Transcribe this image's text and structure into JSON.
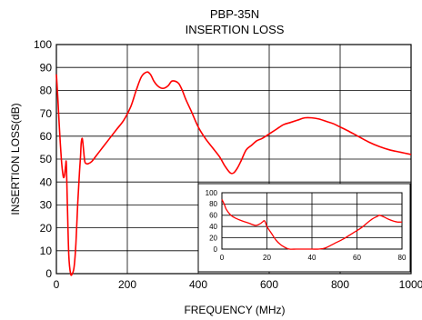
{
  "chart_data": [
    {
      "type": "line",
      "title": "PBP-35N",
      "subtitle": "INSERTION LOSS",
      "xlabel": "FREQUENCY (MHz)",
      "ylabel": "INSERTION LOSS(dB)",
      "xlim": [
        0,
        1000
      ],
      "ylim": [
        0,
        100
      ],
      "xticks": [
        0,
        200,
        400,
        600,
        800,
        1000
      ],
      "yticks": [
        0,
        10,
        20,
        30,
        40,
        50,
        60,
        70,
        80,
        90,
        100
      ],
      "grid": true,
      "series": [
        {
          "color": "#ff0000",
          "x": [
            0,
            2,
            5,
            8,
            11,
            14,
            17,
            20,
            23,
            26,
            28,
            31,
            35,
            40,
            45,
            50,
            55,
            60,
            65,
            68,
            70,
            73,
            76,
            80,
            85,
            90,
            100,
            110,
            130,
            150,
            170,
            190,
            210,
            225,
            240,
            255,
            265,
            275,
            285,
            295,
            305,
            315,
            325,
            335,
            345,
            355,
            365,
            380,
            400,
            420,
            440,
            460,
            475,
            490,
            500,
            510,
            520,
            535,
            550,
            565,
            580,
            600,
            620,
            640,
            660,
            680,
            700,
            720,
            740,
            760,
            780,
            800,
            820,
            850,
            880,
            910,
            940,
            970,
            1000
          ],
          "y": [
            87,
            82,
            74,
            65,
            57,
            50,
            45,
            42,
            43,
            47,
            48,
            30,
            8,
            0,
            0,
            3,
            13,
            30,
            44,
            51,
            57,
            59,
            55,
            49,
            48,
            48,
            49,
            51,
            55,
            59,
            63,
            67,
            73,
            80,
            86,
            88,
            87,
            84,
            82,
            81,
            81,
            82,
            84,
            84,
            83,
            80,
            76,
            71,
            64,
            59,
            55,
            51,
            47,
            44,
            44,
            46,
            49,
            54,
            56,
            58,
            59,
            61,
            63,
            65,
            66,
            67,
            68,
            68,
            67.5,
            66.5,
            65.5,
            64,
            62.5,
            60,
            57.5,
            55.5,
            54,
            53,
            52
          ]
        }
      ]
    },
    {
      "type": "line",
      "xlim": [
        0,
        80
      ],
      "ylim": [
        0,
        100
      ],
      "xticks": [
        0,
        20,
        40,
        60,
        80
      ],
      "yticks": [
        0,
        20,
        40,
        60,
        80,
        100
      ],
      "grid": true,
      "series": [
        {
          "color": "#ff0000",
          "x": [
            0,
            1,
            2,
            4,
            6,
            9,
            12,
            15,
            17,
            18,
            19,
            20,
            22,
            24,
            26,
            28,
            30,
            33,
            36,
            40,
            43,
            46,
            50,
            54,
            58,
            62,
            65,
            67,
            69,
            70,
            72,
            74,
            76,
            78,
            80
          ],
          "y": [
            88,
            80,
            70,
            60,
            55,
            50,
            46,
            42,
            45,
            48,
            50,
            40,
            28,
            16,
            8,
            3,
            0,
            0,
            0,
            0,
            0,
            2,
            10,
            18,
            28,
            38,
            48,
            54,
            58,
            60,
            57,
            53,
            50,
            48,
            48
          ]
        }
      ]
    }
  ]
}
